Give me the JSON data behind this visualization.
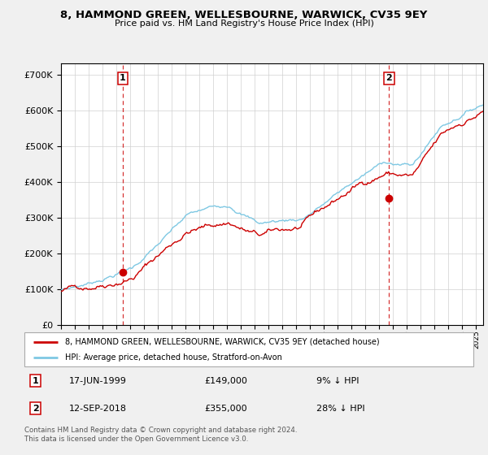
{
  "title": "8, HAMMOND GREEN, WELLESBOURNE, WARWICK, CV35 9EY",
  "subtitle": "Price paid vs. HM Land Registry's House Price Index (HPI)",
  "legend_entry1": "8, HAMMOND GREEN, WELLESBOURNE, WARWICK, CV35 9EY (detached house)",
  "legend_entry2": "HPI: Average price, detached house, Stratford-on-Avon",
  "annotation1_date": "17-JUN-1999",
  "annotation1_price": "£149,000",
  "annotation1_hpi": "9% ↓ HPI",
  "annotation2_date": "12-SEP-2018",
  "annotation2_price": "£355,000",
  "annotation2_hpi": "28% ↓ HPI",
  "footer": "Contains HM Land Registry data © Crown copyright and database right 2024.\nThis data is licensed under the Open Government Licence v3.0.",
  "sale1_year": 1999.46,
  "sale1_price": 149000,
  "sale2_year": 2018.71,
  "sale2_price": 355000,
  "hpi_color": "#7ec8e3",
  "sold_color": "#cc0000",
  "marker_color": "#cc0000",
  "dashed_color": "#cc0000",
  "background_color": "#f0f0f0",
  "plot_bg_color": "#ffffff",
  "grid_color": "#d0d0d0",
  "ylim": [
    0,
    730000
  ],
  "xmin": 1995.0,
  "xmax": 2025.5
}
